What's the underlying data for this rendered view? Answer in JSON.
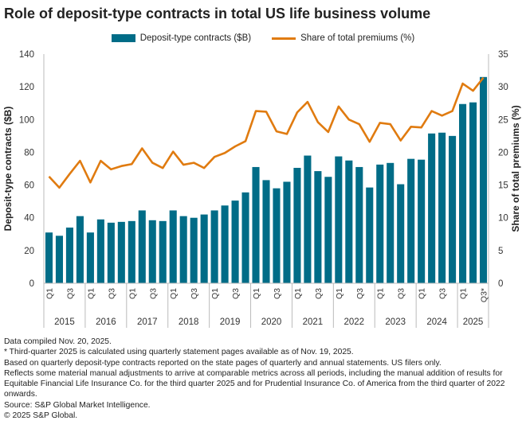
{
  "title": "Role of deposit-type contracts in total US life business volume",
  "colors": {
    "bar": "#006c87",
    "line": "#e07b10",
    "axis": "#bbbbbb"
  },
  "chart_data": {
    "type": "bar+line",
    "title": "Role of deposit-type contracts in total US life business volume",
    "legend_position": "top",
    "grid": false,
    "ylabel": "Deposit-type contracts ($B)",
    "y2label": "Share of total premiums (%)",
    "ylim": [
      0,
      140
    ],
    "y2lim": [
      0,
      35
    ],
    "yticks": [
      0,
      20,
      40,
      60,
      80,
      100,
      120,
      140
    ],
    "y2ticks": [
      0,
      5,
      10,
      15,
      20,
      25,
      30,
      35
    ],
    "years": [
      "2015",
      "2016",
      "2017",
      "2018",
      "2019",
      "2020",
      "2021",
      "2022",
      "2023",
      "2024",
      "2025"
    ],
    "quarter_labels": [
      "Q1",
      "",
      "Q3",
      "",
      "Q1",
      "",
      "Q3",
      "",
      "Q1",
      "",
      "Q3",
      "",
      "Q1",
      "",
      "Q3",
      "",
      "Q1",
      "",
      "Q3",
      "",
      "Q1",
      "",
      "Q3",
      "",
      "Q1",
      "",
      "Q3",
      "",
      "Q1",
      "",
      "Q3",
      "",
      "Q1",
      "",
      "Q3",
      "",
      "Q1",
      "",
      "Q3",
      "",
      "Q1",
      "",
      "Q3*"
    ],
    "series": [
      {
        "name": "Deposit-type contracts ($B)",
        "type": "bar",
        "axis": "left",
        "values": [
          31,
          29,
          34,
          41,
          31,
          39,
          37,
          37.5,
          38,
          44.5,
          38.5,
          38,
          44.5,
          41,
          40,
          42,
          44.5,
          47.5,
          50.5,
          55.5,
          71,
          63,
          58,
          62,
          70.5,
          78,
          68.5,
          65,
          77.5,
          75,
          71,
          58.5,
          72.5,
          73.5,
          60.5,
          76,
          75.5,
          91.5,
          92,
          90,
          109.5,
          110.5,
          126
        ]
      },
      {
        "name": "Share of total premiums (%)",
        "type": "line",
        "axis": "right",
        "values": [
          16.3,
          14.6,
          16.7,
          18.7,
          15.4,
          18.7,
          17.4,
          17.9,
          18.2,
          20.6,
          18.4,
          17.6,
          20.1,
          18.1,
          18.4,
          17.6,
          19.3,
          19.9,
          20.9,
          21.7,
          26.3,
          26.2,
          23.2,
          22.8,
          26.1,
          27.7,
          24.6,
          23.1,
          27.0,
          25.0,
          24.3,
          21.6,
          24.5,
          24.3,
          21.8,
          23.9,
          23.8,
          26.3,
          25.6,
          26.3,
          30.5,
          29.4,
          31.4
        ]
      }
    ]
  },
  "notes": [
    "Data compiled Nov. 20, 2025.",
    "* Third-quarter 2025 is calculated using quarterly statement pages available as of Nov. 19, 2025.",
    "Based on quarterly deposit-type contracts reported on the state pages of quarterly and annual statements. US filers only.",
    "Reflects some material manual adjustments to arrive at comparable metrics across all periods, including the manual addition of results for Equitable Financial Life Insurance Co. for the third quarter 2025 and for Prudential Insurance Co. of America from the third quarter of 2022 onwards.",
    "Source: S&P Global Market Intelligence.",
    "© 2025 S&P Global."
  ]
}
